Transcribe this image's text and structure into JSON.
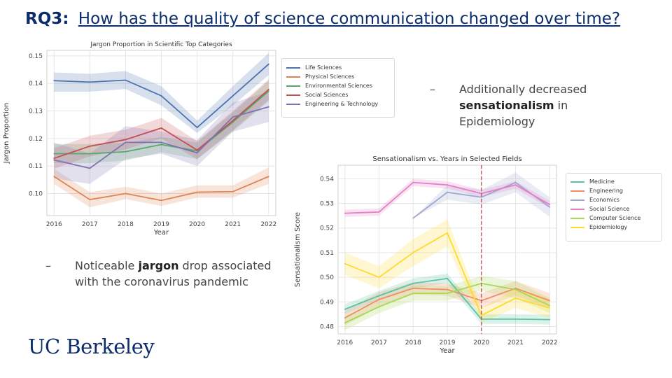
{
  "slide": {
    "title_prefix": "RQ3:",
    "title_question": "How has the quality of science communication changed over time?"
  },
  "bullets": [
    {
      "dash": "–",
      "before": "Noticeable ",
      "bold": "jargon",
      "after": " drop associated with the coronavirus pandemic"
    },
    {
      "dash": "–",
      "before": "Additionally decreased ",
      "bold": "sensationalism",
      "after": " in Epidemiology"
    }
  ],
  "logo": {
    "text": "UC Berkeley"
  },
  "chart_data": [
    {
      "type": "line",
      "title": "Jargon Proportion in Scientific Top Categories",
      "xlabel": "Year",
      "ylabel": "Jargon Proportion",
      "x": [
        2016,
        2017,
        2018,
        2019,
        2020,
        2021,
        2022
      ],
      "xlim": [
        2015.8,
        2022.2
      ],
      "ylim": [
        0.092,
        0.152
      ],
      "yticks": [
        0.1,
        0.11,
        0.12,
        0.13,
        0.14,
        0.15
      ],
      "ytick_labels": [
        "0.10",
        "0.11",
        "0.12",
        "0.13",
        "0.14",
        "0.15"
      ],
      "grid": true,
      "legend_position": "outside-right",
      "series": [
        {
          "name": "Life Sciences",
          "color": "#4c72b0",
          "values": [
            0.141,
            0.1405,
            0.1412,
            0.1355,
            0.124,
            0.1355,
            0.147
          ],
          "lower": [
            0.137,
            0.137,
            0.138,
            0.132,
            0.122,
            0.132,
            0.143
          ],
          "upper": [
            0.144,
            0.1435,
            0.1445,
            0.139,
            0.1265,
            0.139,
            0.151
          ]
        },
        {
          "name": "Physical Sciences",
          "color": "#dd8452",
          "values": [
            0.1062,
            0.0978,
            0.1,
            0.0975,
            0.1005,
            0.1007,
            0.1062
          ],
          "lower": [
            0.1035,
            0.095,
            0.098,
            0.0955,
            0.0985,
            0.0985,
            0.1035
          ],
          "upper": [
            0.109,
            0.1005,
            0.1025,
            0.1,
            0.103,
            0.103,
            0.1095
          ]
        },
        {
          "name": "Environmental Sciences",
          "color": "#55a868",
          "values": [
            0.1145,
            0.1145,
            0.1152,
            0.1178,
            0.1155,
            0.126,
            0.1372
          ],
          "lower": [
            0.111,
            0.111,
            0.112,
            0.115,
            0.1125,
            0.1225,
            0.1335
          ],
          "upper": [
            0.118,
            0.118,
            0.1185,
            0.1205,
            0.1185,
            0.1295,
            0.141
          ]
        },
        {
          "name": "Social Sciences",
          "color": "#c44e52",
          "values": [
            0.1128,
            0.1172,
            0.1196,
            0.1238,
            0.1158,
            0.1265,
            0.1378
          ],
          "lower": [
            0.109,
            0.1135,
            0.116,
            0.12,
            0.1125,
            0.123,
            0.134
          ],
          "upper": [
            0.1165,
            0.121,
            0.1232,
            0.1275,
            0.119,
            0.13,
            0.1415
          ]
        },
        {
          "name": "Engineering & Technology",
          "color": "#8172b3",
          "values": [
            0.1122,
            0.1092,
            0.1186,
            0.1186,
            0.1148,
            0.1278,
            0.1315
          ],
          "lower": [
            0.1055,
            0.1035,
            0.1125,
            0.1145,
            0.11,
            0.1225,
            0.126
          ],
          "upper": [
            0.1185,
            0.1145,
            0.1245,
            0.1225,
            0.1195,
            0.133,
            0.137
          ]
        }
      ]
    },
    {
      "type": "line",
      "title": "Sensationalism vs. Years in Selected Fields",
      "xlabel": "Year",
      "ylabel": "Sensationalism Score",
      "x": [
        2016,
        2017,
        2018,
        2019,
        2020,
        2021,
        2022
      ],
      "xlim": [
        2015.8,
        2022.2
      ],
      "ylim": [
        0.477,
        0.5455
      ],
      "yticks": [
        0.48,
        0.49,
        0.5,
        0.51,
        0.52,
        0.53,
        0.54
      ],
      "ytick_labels": [
        "0.48",
        "0.49",
        "0.50",
        "0.51",
        "0.52",
        "0.53",
        "0.54"
      ],
      "grid": true,
      "vline": {
        "x": 2020,
        "color": "#c44e52",
        "style": "dashed"
      },
      "legend_position": "outside-right",
      "series": [
        {
          "name": "Medicine",
          "color": "#59c4a3",
          "values": [
            0.487,
            0.4925,
            0.4975,
            0.4995,
            0.483,
            0.483,
            0.4828
          ],
          "lower": [
            0.485,
            0.4905,
            0.4955,
            0.4975,
            0.481,
            0.481,
            0.4808
          ],
          "upper": [
            0.489,
            0.4945,
            0.4995,
            0.5015,
            0.485,
            0.485,
            0.4848
          ]
        },
        {
          "name": "Engineering",
          "color": "#f28e60",
          "values": [
            0.4835,
            0.491,
            0.4955,
            0.495,
            0.4905,
            0.4955,
            0.4905
          ],
          "lower": [
            0.4805,
            0.488,
            0.493,
            0.4925,
            0.4875,
            0.4925,
            0.4875
          ],
          "upper": [
            0.4865,
            0.494,
            0.498,
            0.4975,
            0.4935,
            0.4985,
            0.4935
          ]
        },
        {
          "name": "Economics",
          "color": "#9ea8d0",
          "values": [
            null,
            null,
            0.524,
            0.5345,
            0.5325,
            0.5385,
            0.5285
          ],
          "lower": [
            null,
            null,
            0.524,
            0.5315,
            0.5295,
            0.5345,
            0.5245
          ],
          "upper": [
            null,
            null,
            0.524,
            0.5375,
            0.5355,
            0.5425,
            0.5325
          ]
        },
        {
          "name": "Social Science",
          "color": "#e47ec6",
          "values": [
            0.526,
            0.5265,
            0.5385,
            0.5375,
            0.534,
            0.5375,
            0.5295
          ],
          "lower": [
            0.5245,
            0.525,
            0.537,
            0.536,
            0.5325,
            0.536,
            0.528
          ],
          "upper": [
            0.5275,
            0.528,
            0.54,
            0.539,
            0.5355,
            0.539,
            0.531
          ]
        },
        {
          "name": "Computer Science",
          "color": "#a6d854",
          "values": [
            0.4815,
            0.488,
            0.4935,
            0.4935,
            0.4975,
            0.495,
            0.4885
          ],
          "lower": [
            0.4785,
            0.4855,
            0.4905,
            0.4905,
            0.4945,
            0.4915,
            0.4855
          ],
          "upper": [
            0.4845,
            0.4905,
            0.4965,
            0.4965,
            0.5005,
            0.4985,
            0.4915
          ]
        },
        {
          "name": "Epidemiology",
          "color": "#ffd92f",
          "values": [
            0.5055,
            0.5,
            0.51,
            0.518,
            0.4845,
            0.4915,
            0.4875
          ],
          "lower": [
            0.501,
            0.4955,
            0.5045,
            0.5125,
            0.4815,
            0.4875,
            0.4835
          ],
          "upper": [
            0.51,
            0.5045,
            0.5155,
            0.5235,
            0.4875,
            0.4955,
            0.4915
          ]
        }
      ]
    }
  ]
}
